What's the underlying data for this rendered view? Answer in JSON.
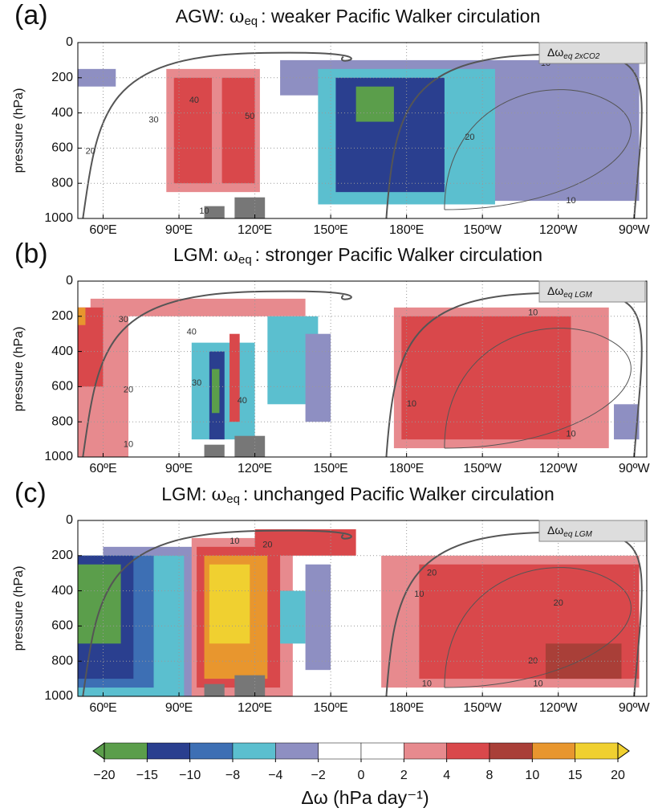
{
  "chart_data": [
    {
      "type": "heatmap",
      "panel_label": "(a)",
      "title_prefix": "AGW:",
      "title_symbol": "ω",
      "title_sub": "eq",
      "title_rest": ": weaker Pacific Walker circulation",
      "legend_symbol": "Δω",
      "legend_sub": "eq 2xCO2",
      "ylabel": "pressure (hPa)",
      "xlim": [
        50,
        275
      ],
      "ylim": [
        1000,
        0
      ],
      "yticks": [
        0,
        200,
        400,
        600,
        800,
        1000
      ],
      "xticks": [
        {
          "value": 60,
          "label": "60ºE"
        },
        {
          "value": 90,
          "label": "90ºE"
        },
        {
          "value": 120,
          "label": "120ºE"
        },
        {
          "value": 150,
          "label": "150ºE"
        },
        {
          "value": 180,
          "label": "180ºE"
        },
        {
          "value": 210,
          "label": "150ºW"
        },
        {
          "value": 240,
          "label": "120ºW"
        },
        {
          "value": 270,
          "label": "90ºW"
        }
      ],
      "cells": [
        {
          "lon": [
            50,
            65
          ],
          "p": [
            150,
            250
          ],
          "value": -3
        },
        {
          "lon": [
            130,
            272
          ],
          "p": [
            100,
            300
          ],
          "value": -3
        },
        {
          "lon": [
            200,
            272
          ],
          "p": [
            250,
            900
          ],
          "value": -3
        },
        {
          "lon": [
            85,
            122
          ],
          "p": [
            150,
            850
          ],
          "value": 3
        },
        {
          "lon": [
            88,
            103
          ],
          "p": [
            200,
            800
          ],
          "value": 5
        },
        {
          "lon": [
            107,
            120
          ],
          "p": [
            200,
            800
          ],
          "value": 5
        },
        {
          "lon": [
            145,
            215
          ],
          "p": [
            150,
            920
          ],
          "value": -6
        },
        {
          "lon": [
            152,
            195
          ],
          "p": [
            200,
            850
          ],
          "value": -12
        },
        {
          "lon": [
            160,
            175
          ],
          "p": [
            250,
            450
          ],
          "value": -17
        }
      ],
      "contours": [
        {
          "value": 10,
          "lon": 100,
          "p": 960
        },
        {
          "value": 20,
          "lon": 55,
          "p": 620
        },
        {
          "value": 30,
          "lon": 80,
          "p": 440
        },
        {
          "value": 40,
          "lon": 96,
          "p": 330
        },
        {
          "value": 50,
          "lon": 118,
          "p": 420
        },
        {
          "value": 10,
          "lon": 235,
          "p": 120
        },
        {
          "value": 20,
          "lon": 205,
          "p": 540
        },
        {
          "value": 10,
          "lon": 245,
          "p": 900
        }
      ]
    },
    {
      "type": "heatmap",
      "panel_label": "(b)",
      "title_prefix": "LGM:",
      "title_symbol": "ω",
      "title_sub": "eq",
      "title_rest": ": stronger Pacific Walker circulation",
      "legend_symbol": "Δω",
      "legend_sub": "eq LGM",
      "ylabel": "pressure (hPa)",
      "xlim": [
        50,
        275
      ],
      "ylim": [
        1000,
        0
      ],
      "yticks": [
        0,
        200,
        400,
        600,
        800,
        1000
      ],
      "xticks": [
        {
          "value": 60,
          "label": "60ºE"
        },
        {
          "value": 90,
          "label": "90ºE"
        },
        {
          "value": 120,
          "label": "120ºE"
        },
        {
          "value": 150,
          "label": "150ºE"
        },
        {
          "value": 180,
          "label": "180ºE"
        },
        {
          "value": 210,
          "label": "150ºW"
        },
        {
          "value": 240,
          "label": "120ºW"
        },
        {
          "value": 270,
          "label": "90ºW"
        }
      ],
      "cells": [
        {
          "lon": [
            50,
            70
          ],
          "p": [
            150,
            1000
          ],
          "value": 3
        },
        {
          "lon": [
            55,
            140
          ],
          "p": [
            100,
            200
          ],
          "value": 3
        },
        {
          "lon": [
            50,
            60
          ],
          "p": [
            150,
            600
          ],
          "value": 6
        },
        {
          "lon": [
            50,
            53
          ],
          "p": [
            150,
            250
          ],
          "value": 12
        },
        {
          "lon": [
            95,
            120
          ],
          "p": [
            350,
            900
          ],
          "value": -6
        },
        {
          "lon": [
            102,
            108
          ],
          "p": [
            400,
            900
          ],
          "value": -12
        },
        {
          "lon": [
            103,
            106
          ],
          "p": [
            500,
            750
          ],
          "value": -17
        },
        {
          "lon": [
            110,
            114
          ],
          "p": [
            300,
            800
          ],
          "value": 6
        },
        {
          "lon": [
            125,
            145
          ],
          "p": [
            200,
            700
          ],
          "value": -6
        },
        {
          "lon": [
            140,
            150
          ],
          "p": [
            300,
            800
          ],
          "value": -3
        },
        {
          "lon": [
            175,
            260
          ],
          "p": [
            150,
            950
          ],
          "value": 3
        },
        {
          "lon": [
            178,
            245
          ],
          "p": [
            200,
            900
          ],
          "value": 6
        },
        {
          "lon": [
            262,
            272
          ],
          "p": [
            700,
            900
          ],
          "value": -3
        }
      ],
      "contours": [
        {
          "value": 30,
          "lon": 68,
          "p": 220
        },
        {
          "value": 40,
          "lon": 95,
          "p": 290
        },
        {
          "value": 20,
          "lon": 70,
          "p": 620
        },
        {
          "value": 10,
          "lon": 70,
          "p": 930
        },
        {
          "value": 30,
          "lon": 97,
          "p": 580
        },
        {
          "value": 40,
          "lon": 115,
          "p": 680
        },
        {
          "value": 10,
          "lon": 230,
          "p": 180
        },
        {
          "value": 10,
          "lon": 245,
          "p": 870
        },
        {
          "value": 10,
          "lon": 182,
          "p": 700
        }
      ]
    },
    {
      "type": "heatmap",
      "panel_label": "(c)",
      "title_prefix": "LGM:",
      "title_symbol": "ω",
      "title_sub": "eq",
      "title_rest": ": unchanged Pacific Walker circulation",
      "legend_symbol": "Δω",
      "legend_sub": "eq LGM",
      "ylabel": "pressure (hPa)",
      "xlim": [
        50,
        275
      ],
      "ylim": [
        1000,
        0
      ],
      "yticks": [
        0,
        200,
        400,
        600,
        800,
        1000
      ],
      "xticks": [
        {
          "value": 60,
          "label": "60ºE"
        },
        {
          "value": 90,
          "label": "90ºE"
        },
        {
          "value": 120,
          "label": "120ºE"
        },
        {
          "value": 150,
          "label": "150ºE"
        },
        {
          "value": 180,
          "label": "180ºE"
        },
        {
          "value": 210,
          "label": "150ºW"
        },
        {
          "value": 240,
          "label": "120ºW"
        },
        {
          "value": 270,
          "label": "90ºW"
        }
      ],
      "cells": [
        {
          "lon": [
            60,
            100
          ],
          "p": [
            150,
            1000
          ],
          "value": -3
        },
        {
          "lon": [
            50,
            92
          ],
          "p": [
            200,
            1000
          ],
          "value": -6
        },
        {
          "lon": [
            50,
            80
          ],
          "p": [
            200,
            950
          ],
          "value": -9
        },
        {
          "lon": [
            50,
            72
          ],
          "p": [
            200,
            900
          ],
          "value": -12
        },
        {
          "lon": [
            50,
            67
          ],
          "p": [
            250,
            700
          ],
          "value": -17
        },
        {
          "lon": [
            95,
            135
          ],
          "p": [
            100,
            1000
          ],
          "value": 3
        },
        {
          "lon": [
            97,
            130
          ],
          "p": [
            150,
            950
          ],
          "value": 6
        },
        {
          "lon": [
            100,
            125
          ],
          "p": [
            200,
            900
          ],
          "value": 12
        },
        {
          "lon": [
            102,
            118
          ],
          "p": [
            250,
            700
          ],
          "value": 17
        },
        {
          "lon": [
            120,
            160
          ],
          "p": [
            50,
            200
          ],
          "value": 6
        },
        {
          "lon": [
            130,
            140
          ],
          "p": [
            400,
            700
          ],
          "value": -6
        },
        {
          "lon": [
            140,
            150
          ],
          "p": [
            250,
            850
          ],
          "value": -3
        },
        {
          "lon": [
            170,
            272
          ],
          "p": [
            200,
            950
          ],
          "value": 3
        },
        {
          "lon": [
            185,
            272
          ],
          "p": [
            250,
            900
          ],
          "value": 6
        },
        {
          "lon": [
            235,
            265
          ],
          "p": [
            700,
            900
          ],
          "value": 9
        }
      ],
      "contours": [
        {
          "value": 10,
          "lon": 112,
          "p": 120
        },
        {
          "value": 20,
          "lon": 125,
          "p": 140
        },
        {
          "value": 10,
          "lon": 185,
          "p": 420
        },
        {
          "value": 20,
          "lon": 190,
          "p": 300
        },
        {
          "value": 20,
          "lon": 240,
          "p": 470
        },
        {
          "value": 20,
          "lon": 230,
          "p": 800
        },
        {
          "value": 10,
          "lon": 188,
          "p": 930
        },
        {
          "value": 10,
          "lon": 232,
          "p": 930
        }
      ]
    },
    {
      "type": "colorbar",
      "label": "Δω (hPa day⁻¹)",
      "bounds": [
        {
          "value": -20,
          "label": "−20"
        },
        {
          "value": -15,
          "label": "−15"
        },
        {
          "value": -10,
          "label": "−10"
        },
        {
          "value": -8,
          "label": "−8"
        },
        {
          "value": -4,
          "label": "−4"
        },
        {
          "value": -2,
          "label": "−2"
        },
        0,
        2,
        4,
        8,
        10,
        15,
        20
      ],
      "colors": [
        "#5b9e4b",
        "#2a3f8f",
        "#3d6fb4",
        "#5bbfcf",
        "#8e8fc2",
        "#ffffff",
        "#ffffff",
        "#e78a8e",
        "#d9484b",
        "#a93f38",
        "#e8962e",
        "#f0d030"
      ]
    }
  ]
}
